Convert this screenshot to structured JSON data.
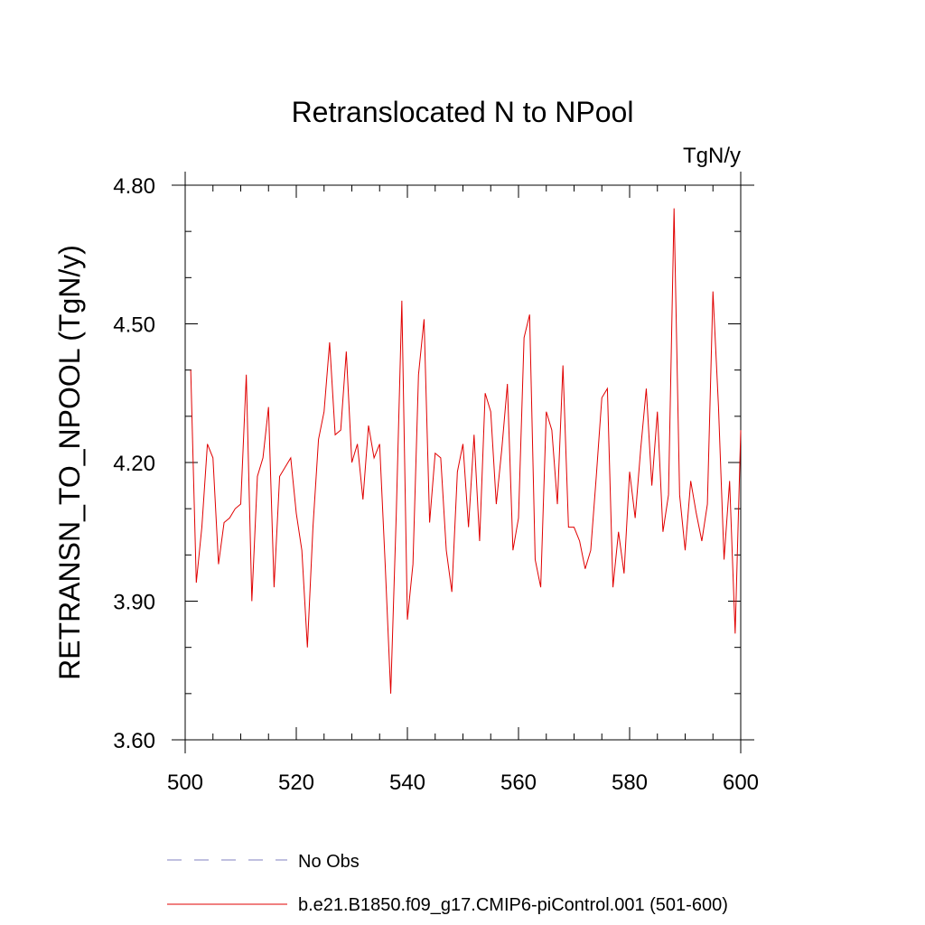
{
  "chart_data": {
    "type": "line",
    "title": "Retranslocated N to NPool",
    "units_label": "TgN/y",
    "xlabel": "",
    "ylabel": "RETRANSN_TO_NPOOL  (TgN/y)",
    "xlim": [
      500,
      600
    ],
    "ylim": [
      3.6,
      4.8
    ],
    "x_ticks": [
      500,
      520,
      540,
      560,
      580,
      600
    ],
    "x_tick_labels": [
      "500",
      "520",
      "540",
      "560",
      "580",
      "600"
    ],
    "y_ticks": [
      3.6,
      3.9,
      4.2,
      4.5,
      4.8
    ],
    "y_tick_labels": [
      "3.60",
      "3.90",
      "4.20",
      "4.50",
      "4.80"
    ],
    "legend": [
      {
        "label": "No Obs",
        "color": "#8080c0",
        "style": "dashed"
      },
      {
        "label": "b.e21.B1850.f09_g17.CMIP6-piControl.001 (501-600)",
        "color": "#e00000",
        "style": "solid"
      }
    ],
    "series": [
      {
        "name": "b.e21.B1850.f09_g17.CMIP6-piControl.001 (501-600)",
        "color": "#e00000",
        "x": [
          501,
          502,
          503,
          504,
          505,
          506,
          507,
          508,
          509,
          510,
          511,
          512,
          513,
          514,
          515,
          516,
          517,
          518,
          519,
          520,
          521,
          522,
          523,
          524,
          525,
          526,
          527,
          528,
          529,
          530,
          531,
          532,
          533,
          534,
          535,
          536,
          537,
          538,
          539,
          540,
          541,
          542,
          543,
          544,
          545,
          546,
          547,
          548,
          549,
          550,
          551,
          552,
          553,
          554,
          555,
          556,
          557,
          558,
          559,
          560,
          561,
          562,
          563,
          564,
          565,
          566,
          567,
          568,
          569,
          570,
          571,
          572,
          573,
          574,
          575,
          576,
          577,
          578,
          579,
          580,
          581,
          582,
          583,
          584,
          585,
          586,
          587,
          588,
          589,
          590,
          591,
          592,
          593,
          594,
          595,
          596,
          597,
          598,
          599,
          600
        ],
        "values": [
          4.4,
          3.94,
          4.06,
          4.24,
          4.21,
          3.98,
          4.07,
          4.08,
          4.1,
          4.11,
          4.39,
          3.9,
          4.17,
          4.21,
          4.32,
          3.93,
          4.17,
          4.19,
          4.21,
          4.09,
          4.01,
          3.8,
          4.06,
          4.25,
          4.31,
          4.46,
          4.26,
          4.27,
          4.44,
          4.2,
          4.24,
          4.12,
          4.28,
          4.21,
          4.24,
          3.98,
          3.7,
          4.09,
          4.55,
          3.86,
          3.98,
          4.39,
          4.51,
          4.07,
          4.22,
          4.21,
          4.01,
          3.92,
          4.18,
          4.24,
          4.06,
          4.26,
          4.03,
          4.35,
          4.31,
          4.11,
          4.23,
          4.37,
          4.01,
          4.08,
          4.47,
          4.52,
          3.99,
          3.93,
          4.31,
          4.27,
          4.11,
          4.41,
          4.06,
          4.06,
          4.03,
          3.97,
          4.01,
          4.17,
          4.34,
          4.36,
          3.93,
          4.05,
          3.96,
          4.18,
          4.08,
          4.23,
          4.36,
          4.15,
          4.31,
          4.05,
          4.13,
          4.75,
          4.13,
          4.01,
          4.16,
          4.09,
          4.03,
          4.11,
          4.57,
          4.32,
          3.99,
          4.16,
          3.83,
          4.27
        ]
      }
    ]
  }
}
